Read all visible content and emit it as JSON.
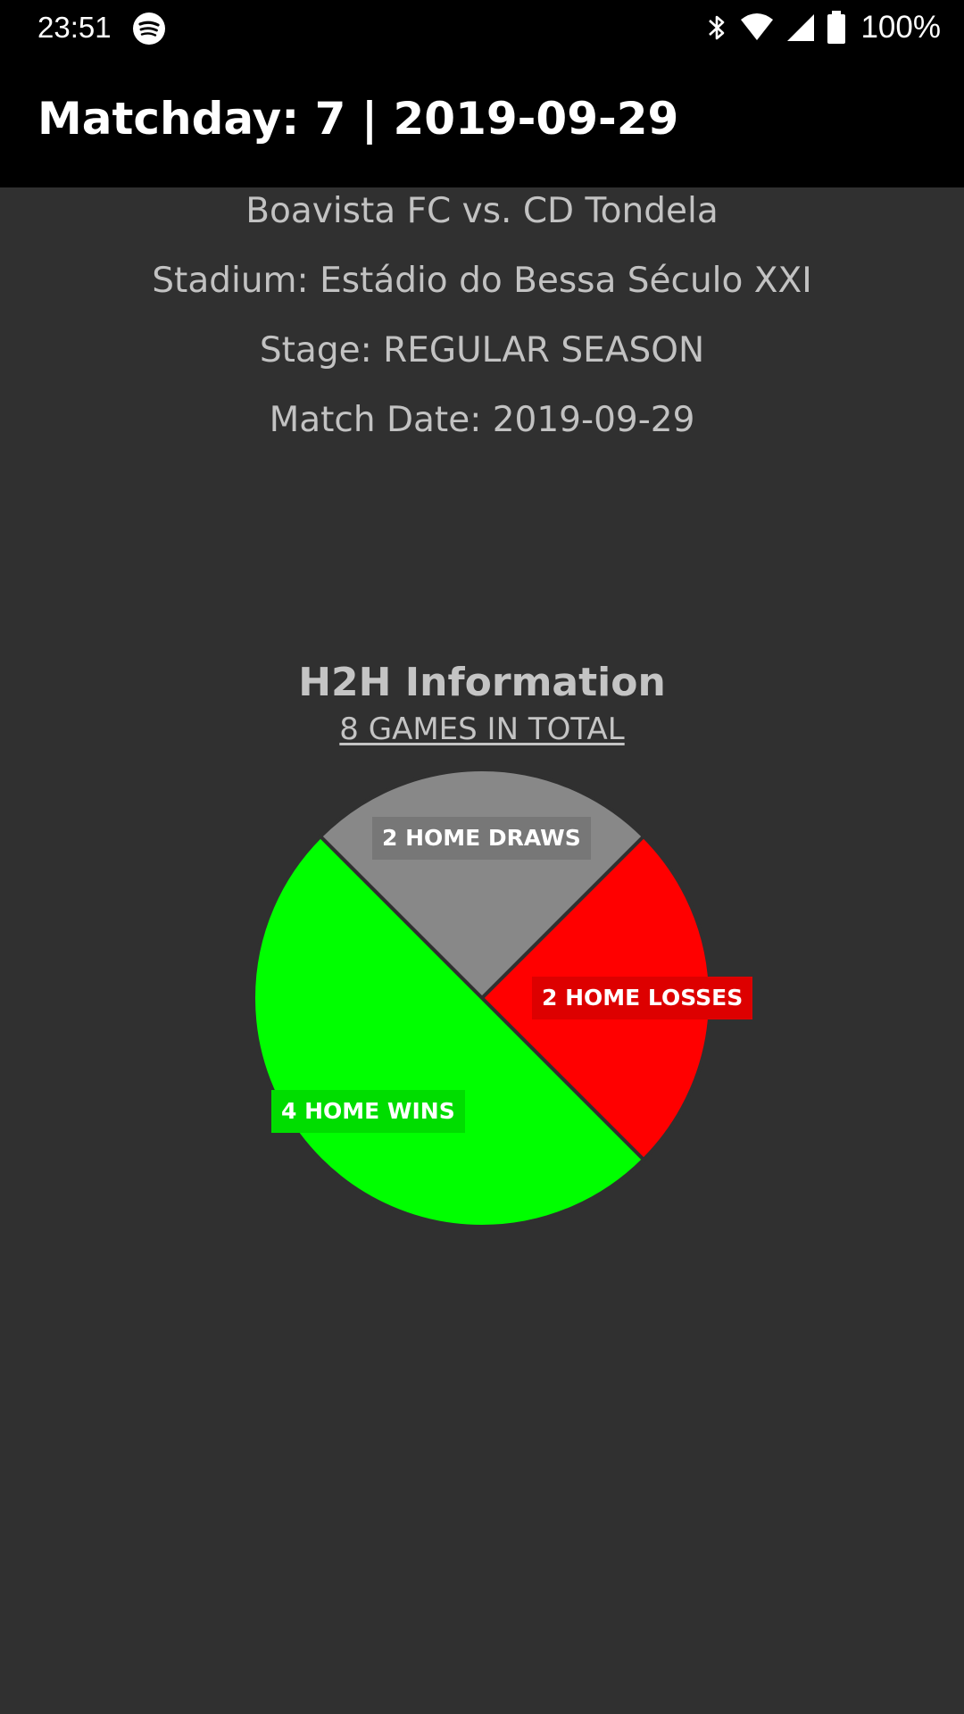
{
  "status_bar": {
    "time": "23:51",
    "battery": "100%",
    "icons": [
      "spotify-icon",
      "bluetooth-icon",
      "wifi-icon",
      "signal-icon",
      "battery-icon"
    ]
  },
  "app_bar": {
    "title": "Matchday: 7 | 2019-09-29"
  },
  "match": {
    "teams": "Boavista FC vs. CD Tondela",
    "stadium": "Stadium: Estádio do Bessa Século XXI",
    "stage": "Stage: REGULAR SEASON",
    "date": "Match Date: 2019-09-29"
  },
  "h2h": {
    "title": "H2H Information",
    "total": "8 GAMES IN TOTAL"
  },
  "chart_data": {
    "type": "pie",
    "slices": [
      {
        "label": "2 HOME DRAWS",
        "value": 2,
        "color": "#888888"
      },
      {
        "label": "2 HOME LOSSES",
        "value": 2,
        "color": "#ff0000"
      },
      {
        "label": "4 HOME WINS",
        "value": 4,
        "color": "#00ff00"
      }
    ],
    "label_colors": [
      "#777777",
      "#dd0000",
      "#00dd00"
    ]
  }
}
